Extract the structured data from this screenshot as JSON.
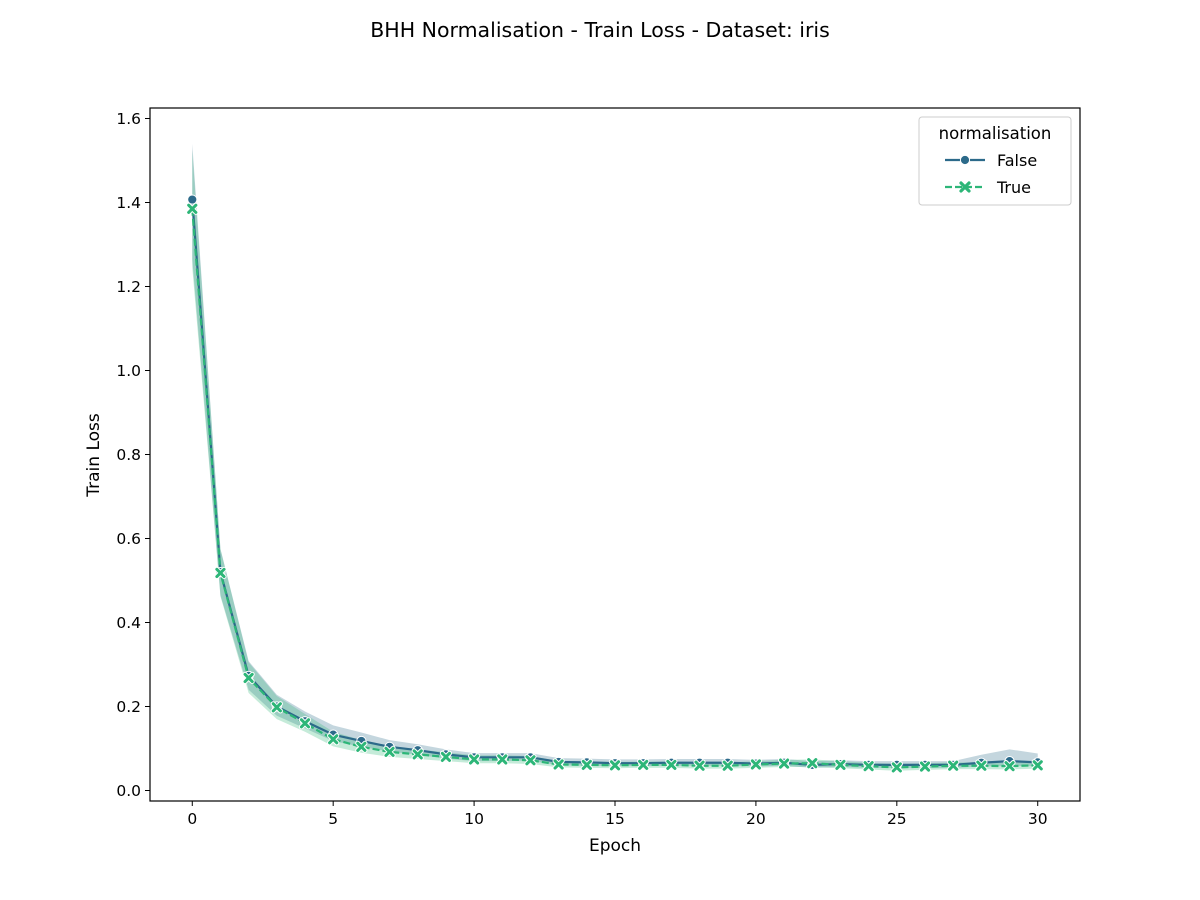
{
  "colors": {
    "series_false": "#2c6a8a",
    "series_true": "#2db678",
    "band_false": "#2c6a8a",
    "band_true": "#2db678"
  },
  "chart_data": {
    "type": "line",
    "title": "BHH Normalisation - Train Loss - Dataset: iris",
    "xlabel": "Epoch",
    "ylabel": "Train Loss",
    "xlim": [
      -1.5,
      31.5
    ],
    "ylim": [
      -0.025,
      1.625
    ],
    "xticks": [
      0,
      5,
      10,
      15,
      20,
      25,
      30
    ],
    "yticks": [
      0.0,
      0.2,
      0.4,
      0.6,
      0.8,
      1.0,
      1.2,
      1.4,
      1.6
    ],
    "grid": false,
    "legend": {
      "title": "normalisation",
      "placement": "top-right"
    },
    "x": [
      0,
      1,
      2,
      3,
      4,
      5,
      6,
      7,
      8,
      9,
      10,
      11,
      12,
      13,
      14,
      15,
      16,
      17,
      18,
      19,
      20,
      21,
      22,
      23,
      24,
      25,
      26,
      27,
      28,
      29,
      30
    ],
    "series": [
      {
        "name": "False",
        "marker": "circle",
        "dash": "solid",
        "values": [
          1.407,
          0.52,
          0.273,
          0.2,
          0.165,
          0.133,
          0.118,
          0.104,
          0.096,
          0.086,
          0.079,
          0.079,
          0.079,
          0.068,
          0.067,
          0.065,
          0.065,
          0.066,
          0.066,
          0.066,
          0.064,
          0.066,
          0.061,
          0.063,
          0.061,
          0.061,
          0.061,
          0.061,
          0.066,
          0.07,
          0.067
        ],
        "lower": [
          1.265,
          0.465,
          0.24,
          0.178,
          0.148,
          0.118,
          0.104,
          0.093,
          0.085,
          0.076,
          0.07,
          0.07,
          0.071,
          0.06,
          0.059,
          0.058,
          0.058,
          0.059,
          0.059,
          0.059,
          0.057,
          0.059,
          0.054,
          0.056,
          0.054,
          0.054,
          0.054,
          0.054,
          0.057,
          0.058,
          0.058
        ],
        "upper": [
          1.54,
          0.575,
          0.308,
          0.228,
          0.188,
          0.155,
          0.138,
          0.12,
          0.11,
          0.098,
          0.089,
          0.089,
          0.089,
          0.077,
          0.076,
          0.074,
          0.074,
          0.075,
          0.075,
          0.075,
          0.073,
          0.075,
          0.07,
          0.072,
          0.07,
          0.07,
          0.07,
          0.07,
          0.085,
          0.098,
          0.088
        ]
      },
      {
        "name": "True",
        "marker": "x",
        "dash": "dashed",
        "values": [
          1.385,
          0.518,
          0.268,
          0.198,
          0.16,
          0.122,
          0.104,
          0.092,
          0.086,
          0.08,
          0.074,
          0.074,
          0.072,
          0.062,
          0.061,
          0.06,
          0.061,
          0.061,
          0.059,
          0.059,
          0.062,
          0.064,
          0.065,
          0.061,
          0.058,
          0.055,
          0.057,
          0.059,
          0.059,
          0.058,
          0.06
        ],
        "lower": [
          1.245,
          0.462,
          0.232,
          0.17,
          0.14,
          0.105,
          0.09,
          0.08,
          0.075,
          0.07,
          0.065,
          0.065,
          0.063,
          0.055,
          0.054,
          0.053,
          0.054,
          0.054,
          0.052,
          0.052,
          0.054,
          0.056,
          0.056,
          0.053,
          0.05,
          0.047,
          0.049,
          0.051,
          0.051,
          0.05,
          0.052
        ],
        "upper": [
          1.525,
          0.575,
          0.305,
          0.225,
          0.182,
          0.14,
          0.12,
          0.105,
          0.098,
          0.091,
          0.084,
          0.084,
          0.082,
          0.07,
          0.069,
          0.068,
          0.069,
          0.069,
          0.067,
          0.067,
          0.07,
          0.073,
          0.074,
          0.07,
          0.066,
          0.063,
          0.065,
          0.067,
          0.067,
          0.066,
          0.068
        ]
      }
    ]
  }
}
